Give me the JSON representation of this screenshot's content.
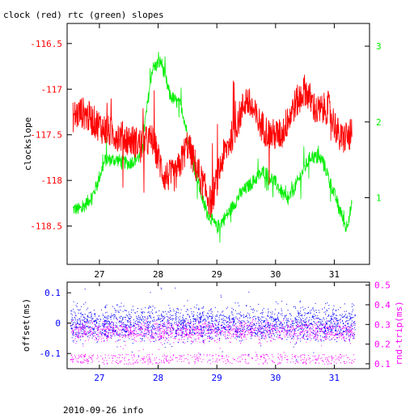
{
  "title": "clock (red) rtc (green) slopes",
  "footer": "2010-09-26 info",
  "colors": {
    "clock": "#ff0000",
    "rtc": "#00ee00",
    "offset": "#0000ff",
    "rtt": "#ff00ff",
    "axis": "#000000"
  },
  "chart_data": [
    {
      "type": "line",
      "title": "clock (red) rtc (green) slopes",
      "x_ticks": [
        27,
        28,
        29,
        30,
        31
      ],
      "xlim": [
        26.45,
        31.6
      ],
      "y_left": {
        "label": "clockslope",
        "ticks": [
          -116.5,
          -117,
          -117.5,
          -118,
          -118.5
        ],
        "tick_labels": [
          "-116.5",
          "-117",
          "-117.5",
          "-118",
          "-118.5"
        ],
        "ylim": [
          -118.92,
          -116.28
        ]
      },
      "y_right": {
        "ticks": [
          3,
          2,
          1
        ],
        "tick_labels": [
          "3",
          "2",
          "1"
        ],
        "ylim": [
          0.12,
          3.3
        ]
      },
      "series": [
        {
          "name": "clock",
          "axis": "left",
          "x": [
            26.55,
            26.7,
            26.9,
            27.1,
            27.3,
            27.5,
            27.7,
            27.9,
            28.1,
            28.3,
            28.5,
            28.7,
            28.9,
            29.1,
            29.3,
            29.5,
            29.7,
            29.9,
            30.1,
            30.3,
            30.5,
            30.7,
            30.9,
            31.1,
            31.3
          ],
          "y": [
            -117.3,
            -117.25,
            -117.35,
            -117.45,
            -117.5,
            -117.55,
            -117.6,
            -117.55,
            -117.95,
            -117.95,
            -117.6,
            -117.95,
            -118.25,
            -117.75,
            -117.45,
            -117.1,
            -117.35,
            -117.5,
            -117.5,
            -117.2,
            -117.0,
            -117.25,
            -117.2,
            -117.55,
            -117.5
          ]
        },
        {
          "name": "rtc",
          "axis": "right",
          "x": [
            26.55,
            26.7,
            26.9,
            27.1,
            27.3,
            27.5,
            27.7,
            27.9,
            28.05,
            28.2,
            28.4,
            28.6,
            28.8,
            29.0,
            29.2,
            29.4,
            29.6,
            29.8,
            30.0,
            30.2,
            30.4,
            30.6,
            30.8,
            31.0,
            31.2,
            31.3
          ],
          "y": [
            0.85,
            0.85,
            1.05,
            1.5,
            1.5,
            1.45,
            1.55,
            2.7,
            2.8,
            2.35,
            2.2,
            1.45,
            0.85,
            0.6,
            0.8,
            1.05,
            1.2,
            1.35,
            1.2,
            0.95,
            1.25,
            1.55,
            1.5,
            1.05,
            0.6,
            0.9
          ]
        }
      ]
    },
    {
      "type": "scatter",
      "x_ticks": [
        27,
        28,
        29,
        30,
        31
      ],
      "xlim": [
        26.45,
        31.6
      ],
      "y_left": {
        "label": "offset(ms)",
        "ticks": [
          0.1,
          0,
          -0.1
        ],
        "tick_labels": [
          "0.1",
          "0",
          "-0.1"
        ],
        "ylim": [
          -0.15,
          0.135
        ]
      },
      "y_right": {
        "label": "rnd-trip(ms)",
        "ticks": [
          0.5,
          0.4,
          0.3,
          0.2,
          0.1
        ],
        "tick_labels": [
          "0.5",
          "0.4",
          "0.3",
          "0.2",
          "0.1"
        ],
        "ylim": [
          0.075,
          0.515
        ]
      },
      "series": [
        {
          "name": "offset",
          "axis": "left",
          "x_range": [
            26.5,
            31.35
          ],
          "y_center": 0.0,
          "y_spread": [
            -0.13,
            0.12
          ]
        },
        {
          "name": "rnd-trip",
          "axis": "right",
          "x_range": [
            26.5,
            31.35
          ],
          "y_center": 0.27,
          "y_spread": [
            0.1,
            0.32
          ]
        }
      ]
    }
  ]
}
